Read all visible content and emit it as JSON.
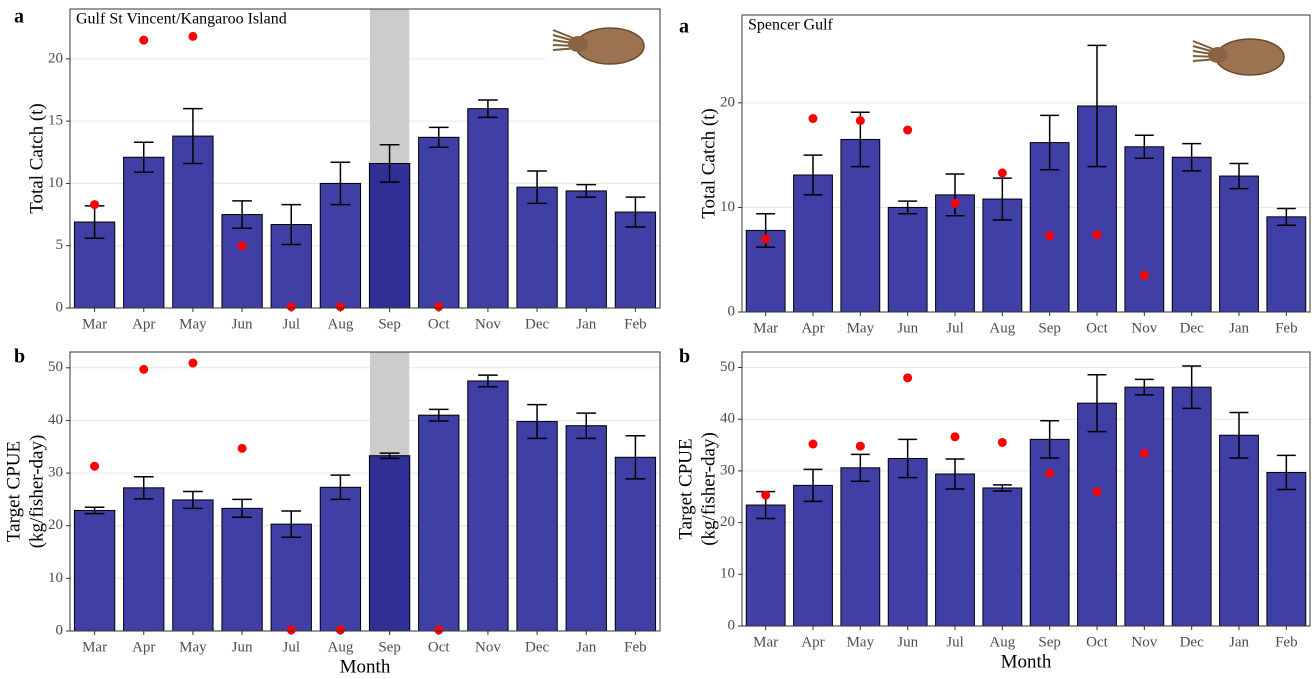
{
  "chart_data": [
    {
      "type": "bar",
      "panel_label": "a",
      "title": "Gulf St Vincent/Kangaroo Island",
      "ylabel": [
        "Total Catch (t)"
      ],
      "categories": [
        "Mar",
        "Apr",
        "May",
        "Jun",
        "Jul",
        "Aug",
        "Sep",
        "Oct",
        "Nov",
        "Dec",
        "Jan",
        "Feb"
      ],
      "values": [
        6.9,
        12.1,
        13.8,
        7.5,
        6.7,
        10.0,
        11.6,
        13.7,
        16.0,
        9.7,
        9.4,
        7.7
      ],
      "errors": [
        1.3,
        1.2,
        2.2,
        1.1,
        1.6,
        1.7,
        1.5,
        0.8,
        0.7,
        1.3,
        0.5,
        1.2
      ],
      "points": [
        8.3,
        21.5,
        21.8,
        5.0,
        0.1,
        0.1,
        null,
        0.1,
        null,
        null,
        null,
        null
      ],
      "color": "#3f3fa6",
      "point_color": "#ff0000",
      "highlight": "Sep",
      "highlight_color": "#2f2f96",
      "band_color": "#cccccc",
      "ylim": [
        0,
        24
      ],
      "yticks": [
        0,
        5,
        10,
        15,
        20
      ],
      "grid": true
    },
    {
      "type": "bar",
      "panel_label": "a",
      "title": "Spencer Gulf",
      "ylabel": [
        "Total Catch (t)"
      ],
      "categories": [
        "Mar",
        "Apr",
        "May",
        "Jun",
        "Jul",
        "Aug",
        "Sep",
        "Oct",
        "Nov",
        "Dec",
        "Jan",
        "Feb"
      ],
      "values": [
        7.8,
        13.1,
        16.5,
        10.0,
        11.2,
        10.8,
        16.2,
        19.7,
        15.8,
        14.8,
        13.0,
        9.1
      ],
      "errors": [
        1.6,
        1.9,
        2.6,
        0.6,
        2.0,
        2.0,
        2.6,
        5.8,
        1.1,
        1.3,
        1.2,
        0.8
      ],
      "points": [
        7.0,
        18.5,
        18.3,
        17.4,
        10.4,
        13.3,
        7.3,
        7.4,
        3.5,
        null,
        null,
        null
      ],
      "color": "#3f3fa6",
      "point_color": "#ff0000",
      "ylim": [
        0,
        28.4
      ],
      "yticks": [
        0,
        10,
        20
      ],
      "grid": true
    },
    {
      "type": "bar",
      "panel_label": "b",
      "ylabel": [
        "Target CPUE",
        "(kg/fisher-day)"
      ],
      "xlabel": "Month",
      "categories": [
        "Mar",
        "Apr",
        "May",
        "Jun",
        "Jul",
        "Aug",
        "Sep",
        "Oct",
        "Nov",
        "Dec",
        "Jan",
        "Feb"
      ],
      "values": [
        22.9,
        27.2,
        24.9,
        23.3,
        20.3,
        27.3,
        33.3,
        41.0,
        47.5,
        39.8,
        39.0,
        33.0
      ],
      "errors": [
        0.6,
        2.1,
        1.6,
        1.7,
        2.5,
        2.3,
        0.5,
        1.1,
        1.1,
        3.2,
        2.4,
        4.1
      ],
      "points": [
        31.3,
        49.7,
        50.9,
        34.7,
        0.2,
        0.2,
        null,
        0.2,
        null,
        null,
        null,
        null
      ],
      "color": "#3f3fa6",
      "point_color": "#ff0000",
      "highlight": "Sep",
      "highlight_color": "#2f2f96",
      "band_color": "#cccccc",
      "ylim": [
        0,
        53
      ],
      "yticks": [
        0,
        10,
        20,
        30,
        40,
        50
      ],
      "grid": true
    },
    {
      "type": "bar",
      "panel_label": "b",
      "ylabel": [
        "Target CPUE",
        "(kg/fisher-day)"
      ],
      "xlabel": "Month",
      "categories": [
        "Mar",
        "Apr",
        "May",
        "Jun",
        "Jul",
        "Aug",
        "Sep",
        "Oct",
        "Nov",
        "Dec",
        "Jan",
        "Feb"
      ],
      "values": [
        23.4,
        27.2,
        30.6,
        32.4,
        29.4,
        26.7,
        36.1,
        43.1,
        46.2,
        46.2,
        36.9,
        29.7
      ],
      "errors": [
        2.6,
        3.1,
        2.6,
        3.7,
        2.9,
        0.6,
        3.6,
        5.5,
        1.5,
        4.1,
        4.4,
        3.3
      ],
      "points": [
        25.3,
        35.2,
        34.8,
        48.0,
        36.6,
        35.5,
        29.5,
        26.0,
        33.4,
        null,
        null,
        null
      ],
      "color": "#3f3fa6",
      "point_color": "#ff0000",
      "ylim": [
        0,
        53
      ],
      "yticks": [
        0,
        10,
        20,
        30,
        40,
        50
      ],
      "grid": true
    }
  ]
}
